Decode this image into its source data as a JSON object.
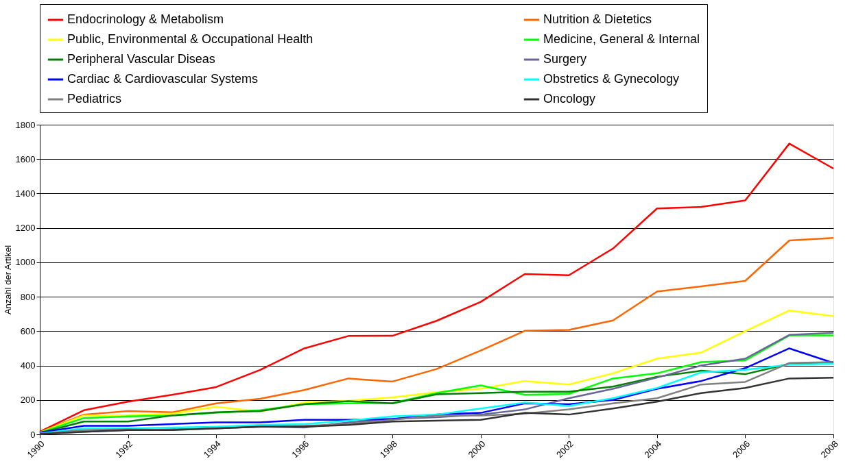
{
  "chart_data": {
    "type": "line",
    "ylabel": "Anzahl der Artikel",
    "x": [
      1990,
      1991,
      1992,
      1993,
      1994,
      1995,
      1996,
      1997,
      1998,
      1999,
      2000,
      2001,
      2002,
      2003,
      2004,
      2005,
      2006,
      2007,
      2008
    ],
    "xlim": [
      1990,
      2008
    ],
    "xticks": [
      1990,
      1992,
      1994,
      1996,
      1998,
      2000,
      2002,
      2004,
      2006,
      2008
    ],
    "ylim": [
      0,
      1800
    ],
    "yticks": [
      0,
      200,
      400,
      600,
      800,
      1000,
      1200,
      1400,
      1600,
      1800
    ],
    "grid": "y",
    "legend": "top",
    "marker": "none",
    "line_style": "solid",
    "series": [
      {
        "name": "Endocrinology & Metabolism",
        "color": "#ff0000",
        "values": [
          15,
          140,
          190,
          230,
          275,
          375,
          500,
          572,
          573,
          660,
          770,
          932,
          925,
          1080,
          1313,
          1322,
          1360,
          1690,
          1545
        ]
      },
      {
        "name": "Nutrition & Dietetics",
        "color": "#ff6600",
        "values": [
          12,
          115,
          135,
          128,
          180,
          207,
          258,
          325,
          307,
          380,
          487,
          602,
          607,
          662,
          830,
          860,
          892,
          1127,
          1142
        ]
      },
      {
        "name": "Public, Environmental & Occupational Health",
        "color": "#ffff00",
        "values": [
          10,
          110,
          112,
          120,
          160,
          132,
          185,
          195,
          215,
          245,
          265,
          310,
          290,
          355,
          440,
          475,
          600,
          720,
          687
        ]
      },
      {
        "name": "Medicine, General & Internal",
        "color": "#00ff00",
        "values": [
          10,
          95,
          105,
          110,
          125,
          140,
          175,
          180,
          182,
          240,
          285,
          230,
          235,
          325,
          355,
          420,
          430,
          575,
          575
        ]
      },
      {
        "name": "Peripheral Vascular Diseas",
        "color": "#008000",
        "values": [
          8,
          75,
          75,
          110,
          128,
          135,
          175,
          193,
          180,
          233,
          240,
          248,
          248,
          278,
          335,
          370,
          350,
          410,
          420
        ]
      },
      {
        "name": "Surgery",
        "color": "#666699",
        "values": [
          3,
          15,
          25,
          30,
          35,
          45,
          40,
          70,
          90,
          100,
          115,
          145,
          210,
          265,
          330,
          400,
          440,
          578,
          590
        ]
      },
      {
        "name": "Cardiac & Cardiovascular Systems",
        "color": "#0000ff",
        "values": [
          10,
          50,
          50,
          60,
          70,
          70,
          85,
          85,
          90,
          115,
          125,
          180,
          175,
          200,
          265,
          310,
          385,
          500,
          415
        ]
      },
      {
        "name": "Obstretics & Gynecology",
        "color": "#00ffff",
        "values": [
          5,
          35,
          35,
          40,
          45,
          55,
          60,
          80,
          105,
          115,
          150,
          185,
          165,
          210,
          270,
          360,
          375,
          405,
          410
        ]
      },
      {
        "name": "Pediatrics",
        "color": "#808080",
        "values": [
          3,
          25,
          30,
          25,
          35,
          45,
          50,
          60,
          85,
          110,
          110,
          120,
          145,
          180,
          210,
          290,
          305,
          415,
          420
        ]
      },
      {
        "name": "Oncology",
        "color": "#333333",
        "values": [
          2,
          15,
          25,
          25,
          35,
          45,
          45,
          55,
          75,
          80,
          85,
          125,
          115,
          150,
          190,
          240,
          270,
          325,
          330
        ]
      }
    ]
  }
}
